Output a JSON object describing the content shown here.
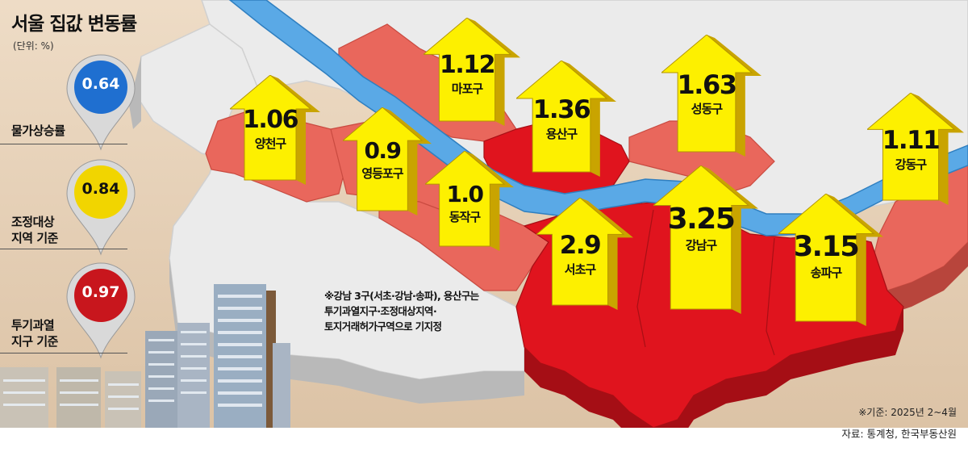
{
  "title": "서울 집값 변동률",
  "unit": "(단위: %)",
  "legend_pins": [
    {
      "value": "0.64",
      "label": "물가상승률",
      "color": "#1f6fd0"
    },
    {
      "value": "0.84",
      "label": "조정대상\n지역 기준",
      "color": "#f1d500"
    },
    {
      "value": "0.97",
      "label": "투기과열\n지구 기준",
      "color": "#c8161d"
    }
  ],
  "districts": [
    {
      "name": "양천구",
      "value": "1.06"
    },
    {
      "name": "마포구",
      "value": "1.12"
    },
    {
      "name": "영등포구",
      "value": "0.9"
    },
    {
      "name": "용산구",
      "value": "1.36"
    },
    {
      "name": "동작구",
      "value": "1.0"
    },
    {
      "name": "성동구",
      "value": "1.63"
    },
    {
      "name": "서초구",
      "value": "2.9"
    },
    {
      "name": "강남구",
      "value": "3.25"
    },
    {
      "name": "송파구",
      "value": "3.15"
    },
    {
      "name": "강동구",
      "value": "1.11"
    }
  ],
  "note": "※강남 3구(서초·강남·송파), 용산구는\n투기과열지구·조정대상지역·\n토지거래허가구역으로 기지정",
  "basis": "※기준: 2025년 2~4월",
  "source": "자료: 통계청, 한국부동산원",
  "colors": {
    "background": "#e8d4bc",
    "river": "#5aa9e6",
    "gray_district": "#ececec",
    "salmon_district": "#e9675c",
    "red_district": "#e0141e",
    "arrow_yellow": "#fdf000"
  }
}
